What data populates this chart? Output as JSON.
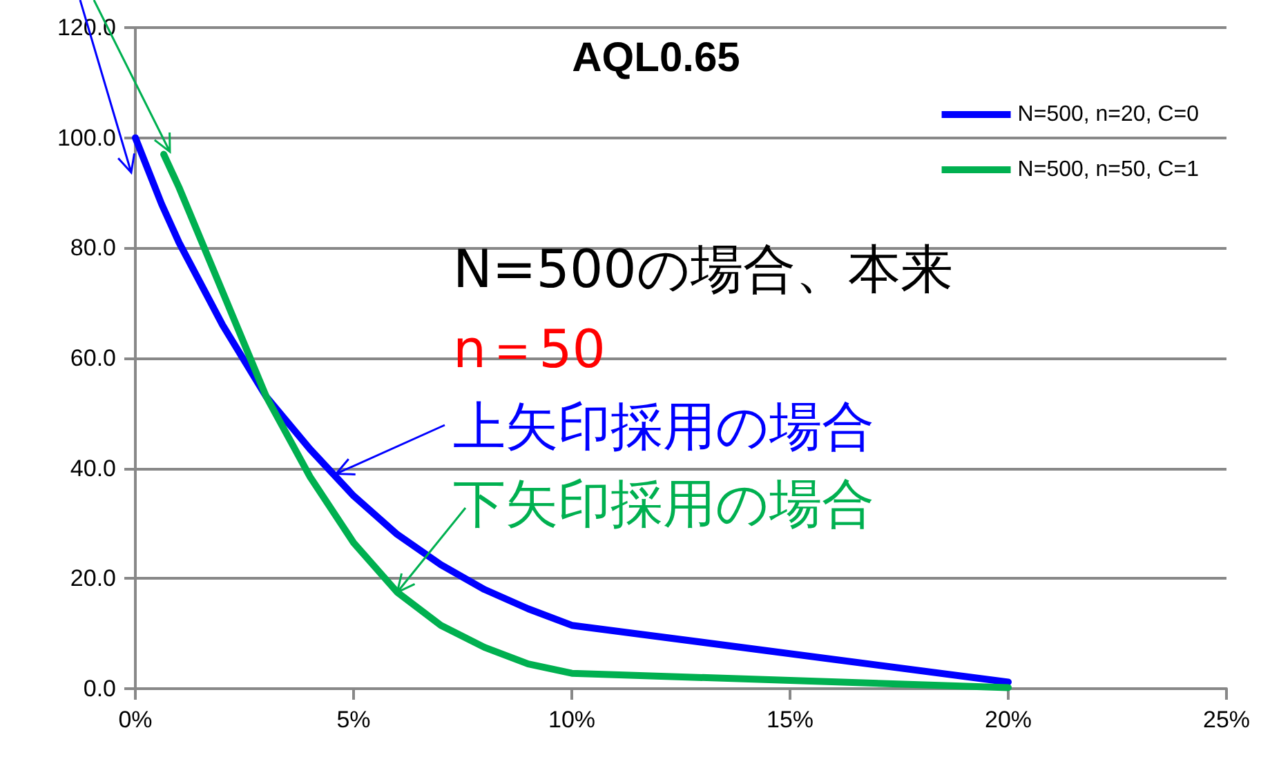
{
  "chart_data": {
    "type": "line",
    "title": "AQL0.65",
    "xlim": [
      0,
      25
    ],
    "xticks": [
      {
        "value": 0,
        "label": "0%"
      },
      {
        "value": 5,
        "label": "5%"
      },
      {
        "value": 10,
        "label": "10%"
      },
      {
        "value": 15,
        "label": "15%"
      },
      {
        "value": 20,
        "label": "20%"
      },
      {
        "value": 25,
        "label": "25%"
      }
    ],
    "ylim": [
      0,
      120
    ],
    "yticks": [
      {
        "value": 0,
        "label": "0.0"
      },
      {
        "value": 20,
        "label": "20.0"
      },
      {
        "value": 40,
        "label": "40.0"
      },
      {
        "value": 60,
        "label": "60.0"
      },
      {
        "value": 80,
        "label": "80.0"
      },
      {
        "value": 100,
        "label": "100.0"
      },
      {
        "value": 120,
        "label": "120.0"
      }
    ],
    "series": [
      {
        "name": "N=500, n=20, C=0",
        "color": "#0000ff",
        "x": [
          0,
          0.6,
          1,
          2,
          3,
          4,
          5,
          6,
          7,
          8,
          9,
          10,
          20
        ],
        "values": [
          100,
          88,
          81,
          66,
          53,
          43.5,
          35,
          28,
          22.5,
          18,
          14.5,
          11.5,
          1.2
        ]
      },
      {
        "name": "N=500, n=50, C=1",
        "color": "#00b050",
        "x": [
          0.65,
          1,
          2,
          3,
          4,
          5,
          6,
          7,
          8,
          9,
          10,
          20
        ],
        "values": [
          97,
          91,
          72,
          53,
          38.5,
          26.5,
          17.5,
          11.5,
          7.5,
          4.5,
          2.8,
          0.2
        ]
      }
    ],
    "annotations": [
      "N=500の場合、本来",
      "n＝50",
      {
        "text": "上矢印採用の場合",
        "x": 4.6,
        "y": 39
      },
      {
        "text": "下矢印採用の場合",
        "x": 6,
        "y": 17.5
      }
    ],
    "grid": "y",
    "legend": "top right",
    "marker": "none",
    "line_style": "solid"
  }
}
